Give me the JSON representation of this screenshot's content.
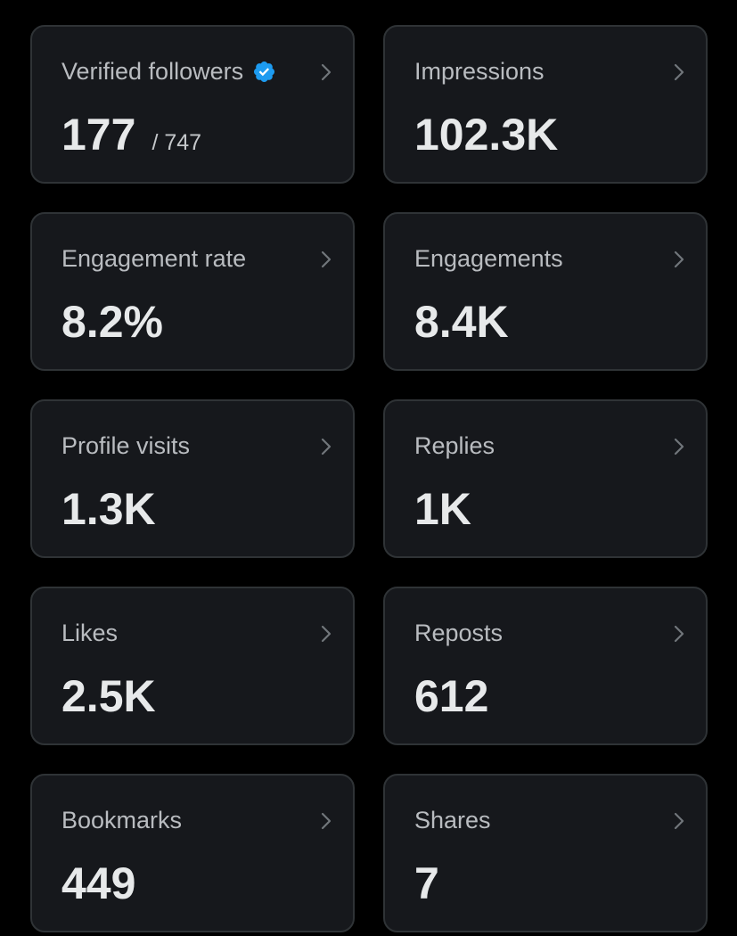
{
  "colors": {
    "background": "#000000",
    "card_background": "#16181c",
    "card_border": "#2f3336",
    "title_text": "#b9bcc0",
    "value_text": "#e7e9ea",
    "verified_badge": "#1d9bf0"
  },
  "metrics": [
    {
      "label": "Verified followers",
      "value": "177",
      "sub": "/ 747",
      "icon": "verified-badge-icon"
    },
    {
      "label": "Impressions",
      "value": "102.3K"
    },
    {
      "label": "Engagement rate",
      "value": "8.2%"
    },
    {
      "label": "Engagements",
      "value": "8.4K"
    },
    {
      "label": "Profile visits",
      "value": "1.3K"
    },
    {
      "label": "Replies",
      "value": "1K"
    },
    {
      "label": "Likes",
      "value": "2.5K"
    },
    {
      "label": "Reposts",
      "value": "612"
    },
    {
      "label": "Bookmarks",
      "value": "449"
    },
    {
      "label": "Shares",
      "value": "7"
    }
  ]
}
